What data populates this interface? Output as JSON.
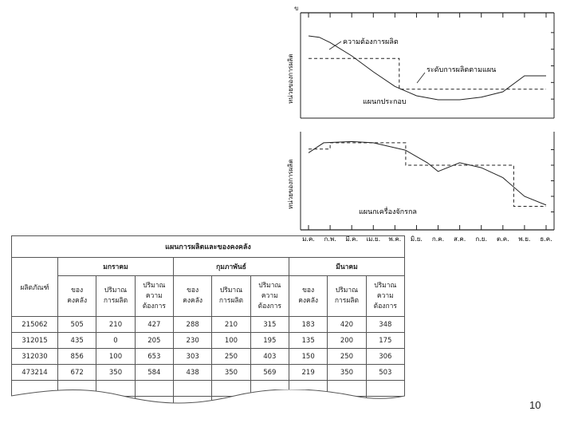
{
  "chart_data": [
    {
      "type": "line",
      "ylabel": "หน่วยของการผลิต",
      "x_categories": [
        "ม.ค.",
        "ก.พ.",
        "มี.ค.",
        "เม.ย.",
        "พ.ค.",
        "มิ.ย.",
        "ก.ค.",
        "ส.ค.",
        "ก.ย.",
        "ต.ค.",
        "พ.ย.",
        "ธ.ค."
      ],
      "annotations": [
        "ความต้องการผลิต",
        "ระดับการผลิตตามแผน",
        "แผนกประกอบ"
      ],
      "series": [
        {
          "name": "ความต้องการผลิต",
          "style": "solid",
          "points": [
            [
              0,
              60
            ],
            [
              0.5,
              59
            ],
            [
              1,
              55
            ],
            [
              2,
              45
            ],
            [
              3,
              33
            ],
            [
              4,
              22
            ],
            [
              5,
              15
            ],
            [
              6,
              12
            ],
            [
              7,
              12
            ],
            [
              8,
              14
            ],
            [
              9,
              18
            ],
            [
              10,
              30
            ],
            [
              11,
              30
            ]
          ]
        },
        {
          "name": "ระดับการผลิตตามแผน",
          "style": "dashed",
          "points": [
            [
              0,
              43
            ],
            [
              4.2,
              43
            ],
            [
              4.2,
              20
            ],
            [
              11,
              20
            ]
          ]
        }
      ]
    },
    {
      "type": "line",
      "ylabel": "หน่วยของการผลิต",
      "x_categories": [
        "ม.ค.",
        "ก.พ.",
        "มี.ค.",
        "เม.ย.",
        "พ.ค.",
        "มิ.ย.",
        "ก.ค.",
        "ส.ค.",
        "ก.ย.",
        "ต.ค.",
        "พ.ย.",
        "ธ.ค."
      ],
      "annotations": [
        "แผนกเครื่องจักรกล"
      ],
      "series": [
        {
          "name": "ความต้องการผลิต",
          "style": "solid",
          "points": [
            [
              0,
              60
            ],
            [
              0.7,
              68
            ],
            [
              2,
              69
            ],
            [
              3,
              68
            ],
            [
              4.5,
              62
            ],
            [
              5.5,
              52
            ],
            [
              6,
              45
            ],
            [
              7,
              52
            ],
            [
              8,
              48
            ],
            [
              9,
              40
            ],
            [
              10,
              25
            ],
            [
              11,
              18
            ]
          ]
        },
        {
          "name": "ระดับการผลิต",
          "style": "dashed",
          "points": [
            [
              0,
              63
            ],
            [
              1,
              63
            ],
            [
              1,
              68
            ],
            [
              4.5,
              68
            ],
            [
              4.5,
              50
            ],
            [
              9.5,
              50
            ],
            [
              9.5,
              17
            ],
            [
              11,
              17
            ]
          ]
        }
      ]
    }
  ],
  "table": {
    "title": "แผนการผลิตและของคงคลัง",
    "row_header": "ผลิตภัณฑ์",
    "months": [
      "มกราคม",
      "กุมภาพันธ์",
      "มีนาคม"
    ],
    "sub_headers": [
      [
        "ของ",
        "คงคลัง"
      ],
      [
        "ปริมาณ",
        "การผลิต"
      ],
      [
        "ปริมาณ",
        "ความ",
        "ต้องการ"
      ]
    ],
    "rows": [
      {
        "product": "215062",
        "values": [
          "505",
          "210",
          "427",
          "288",
          "210",
          "315",
          "183",
          "420",
          "348"
        ]
      },
      {
        "product": "312015",
        "values": [
          "435",
          "0",
          "205",
          "230",
          "100",
          "195",
          "135",
          "200",
          "175"
        ]
      },
      {
        "product": "312030",
        "values": [
          "856",
          "100",
          "653",
          "303",
          "250",
          "403",
          "150",
          "250",
          "306"
        ]
      },
      {
        "product": "473214",
        "values": [
          "672",
          "350",
          "584",
          "438",
          "350",
          "569",
          "219",
          "350",
          "503"
        ]
      }
    ]
  },
  "page_number": "10"
}
